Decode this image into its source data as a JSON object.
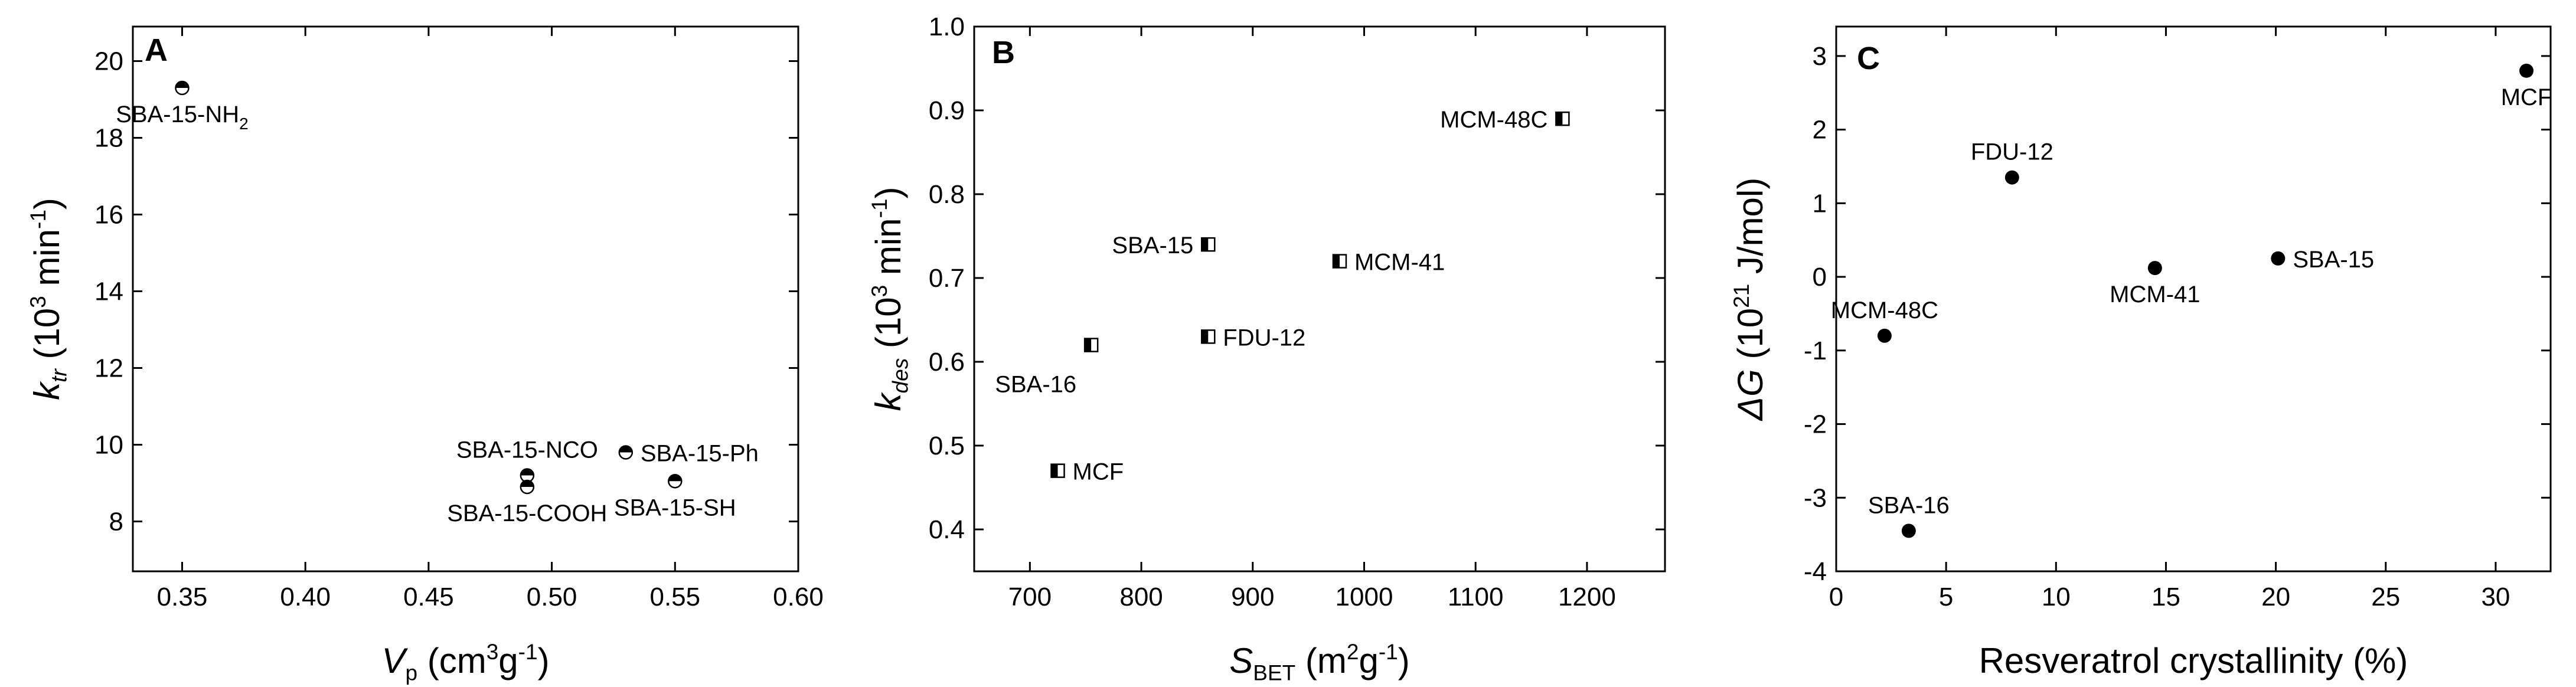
{
  "colors": {
    "ink": "#000000",
    "background": "#ffffff"
  },
  "chart_data": [
    {
      "type": "scatter",
      "panel_label": "A",
      "xlabel": {
        "main": "V",
        "sub": "p",
        "unit_pre": " (cm",
        "sup": "3",
        "unit_mid": "g",
        "sup2": "-1",
        "unit_post": ")"
      },
      "ylabel": {
        "main": "k",
        "sub": "tr",
        "unit_pre": " (10",
        "sup": "3",
        "unit_mid": " min",
        "sup2": "-1",
        "unit_post": ")"
      },
      "xlim": [
        0.33,
        0.6
      ],
      "ylim": [
        6.7,
        20.9
      ],
      "xticks": [
        "0.35",
        "0.40",
        "0.45",
        "0.50",
        "0.55",
        "0.60"
      ],
      "yticks": [
        "8",
        "10",
        "12",
        "14",
        "16",
        "18",
        "20"
      ],
      "marker": "half-filled circle",
      "points": [
        {
          "label": "SBA-15-NH",
          "label_sub": "2",
          "x": 0.35,
          "y": 19.3,
          "label_pos": "below"
        },
        {
          "label": "SBA-15-NCO",
          "x": 0.49,
          "y": 9.2,
          "label_pos": "above"
        },
        {
          "label": "SBA-15-COOH",
          "x": 0.49,
          "y": 8.9,
          "label_pos": "below"
        },
        {
          "label": "SBA-15-Ph",
          "x": 0.53,
          "y": 9.8,
          "label_pos": "right"
        },
        {
          "label": "SBA-15-SH",
          "x": 0.55,
          "y": 9.05,
          "label_pos": "below"
        }
      ]
    },
    {
      "type": "scatter",
      "panel_label": "B",
      "xlabel": {
        "main": "S",
        "sub": "BET",
        "unit_pre": " (m",
        "sup": "2",
        "unit_mid": "g",
        "sup2": "-1",
        "unit_post": ")"
      },
      "ylabel": {
        "main": "k",
        "sub": "des",
        "unit_pre": " (10",
        "sup": "3",
        "unit_mid": " min",
        "sup2": "-1",
        "unit_post": ")"
      },
      "xlim": [
        650,
        1270
      ],
      "ylim": [
        0.35,
        1.0
      ],
      "xticks": [
        "700",
        "800",
        "900",
        "1000",
        "1100",
        "1200"
      ],
      "yticks": [
        "0.4",
        "0.5",
        "0.6",
        "0.7",
        "0.8",
        "0.9",
        "1.0"
      ],
      "marker": "half-filled square",
      "points": [
        {
          "label": "MCM-48C",
          "x": 1178,
          "y": 0.89,
          "label_pos": "left"
        },
        {
          "label": "SBA-15",
          "x": 860,
          "y": 0.74,
          "label_pos": "left"
        },
        {
          "label": "MCM-41",
          "x": 978,
          "y": 0.72,
          "label_pos": "right"
        },
        {
          "label": "FDU-12",
          "x": 860,
          "y": 0.63,
          "label_pos": "right"
        },
        {
          "label": "SBA-16",
          "x": 755,
          "y": 0.62,
          "label_pos": "below-left"
        },
        {
          "label": "MCF",
          "x": 725,
          "y": 0.47,
          "label_pos": "right"
        }
      ]
    },
    {
      "type": "scatter",
      "panel_label": "C",
      "xlabel": {
        "main": "Resveratrol crystallinity (%)"
      },
      "ylabel": {
        "main": "ΔG",
        "unit_pre": " (10",
        "sup": "21",
        "unit_post": " J/mol)"
      },
      "xlim": [
        0,
        32.5
      ],
      "ylim": [
        -4,
        3.4
      ],
      "xticks": [
        "0",
        "5",
        "10",
        "15",
        "20",
        "25",
        "30"
      ],
      "yticks": [
        "-4",
        "-3",
        "-2",
        "-1",
        "0",
        "1",
        "2",
        "3"
      ],
      "marker": "filled circle",
      "points": [
        {
          "label": "MCF",
          "x": 31.4,
          "y": 2.8,
          "label_pos": "below"
        },
        {
          "label": "FDU-12",
          "x": 8.0,
          "y": 1.35,
          "label_pos": "above"
        },
        {
          "label": "SBA-15",
          "x": 20.1,
          "y": 0.25,
          "label_pos": "right"
        },
        {
          "label": "MCM-41",
          "x": 14.5,
          "y": 0.12,
          "label_pos": "below"
        },
        {
          "label": "MCM-48C",
          "x": 2.2,
          "y": -0.8,
          "label_pos": "above"
        },
        {
          "label": "SBA-16",
          "x": 3.3,
          "y": -3.45,
          "label_pos": "above"
        }
      ]
    }
  ]
}
